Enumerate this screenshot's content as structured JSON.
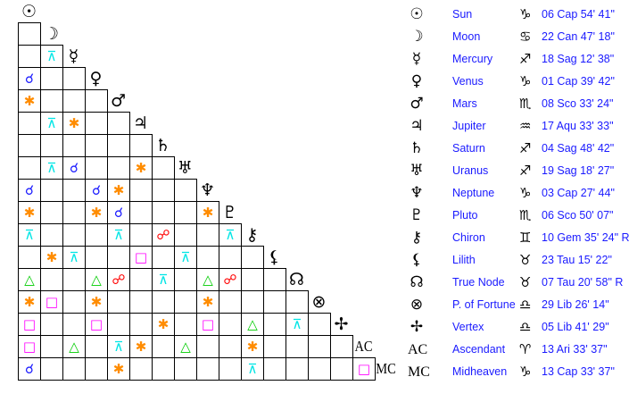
{
  "bodies": [
    {
      "glyph": "☉",
      "name": "Sun",
      "sign": "♑",
      "position": "06 Cap 54' 41\""
    },
    {
      "glyph": "☽",
      "name": "Moon",
      "sign": "♋",
      "position": "22 Can 47' 18\""
    },
    {
      "glyph": "☿",
      "name": "Mercury",
      "sign": "♐",
      "position": "18 Sag 12' 38\""
    },
    {
      "glyph": "♀",
      "name": "Venus",
      "sign": "♑",
      "position": "01 Cap 39' 42\""
    },
    {
      "glyph": "♂",
      "name": "Mars",
      "sign": "♏",
      "position": "08 Sco 33' 24\""
    },
    {
      "glyph": "♃",
      "name": "Jupiter",
      "sign": "♒",
      "position": "17 Aqu 33' 33\""
    },
    {
      "glyph": "♄",
      "name": "Saturn",
      "sign": "♐",
      "position": "04 Sag 48' 42\""
    },
    {
      "glyph": "♅",
      "name": "Uranus",
      "sign": "♐",
      "position": "19 Sag 18' 27\""
    },
    {
      "glyph": "♆",
      "name": "Neptune",
      "sign": "♑",
      "position": "03 Cap 27' 44\""
    },
    {
      "glyph": "♇",
      "name": "Pluto",
      "sign": "♏",
      "position": "06 Sco 50' 07\""
    },
    {
      "glyph": "⚷",
      "name": "Chiron",
      "sign": "♊",
      "position": "10 Gem 35' 24\" R"
    },
    {
      "glyph": "⚸",
      "name": "Lilith",
      "sign": "♉",
      "position": "23 Tau 15' 22\""
    },
    {
      "glyph": "☊",
      "name": "True Node",
      "sign": "♉",
      "position": "07 Tau 20' 58\" R"
    },
    {
      "glyph": "⊗",
      "name": "P. of Fortune",
      "sign": "♎",
      "position": "29 Lib 26' 14\""
    },
    {
      "glyph": "✢",
      "name": "Vertex",
      "sign": "♎",
      "position": "05 Lib 41' 29\""
    },
    {
      "glyph": "AC",
      "name": "Ascendant",
      "sign": "♈",
      "position": "13 Ari 33' 37\""
    },
    {
      "glyph": "MC",
      "name": "Midheaven",
      "sign": "♑",
      "position": "13 Cap 33' 37\""
    }
  ],
  "aspect_types": {
    "conjunction": {
      "glyph": "☌",
      "color": "#1a1aff"
    },
    "sextile": {
      "glyph": "✱",
      "color": "#ff8c00"
    },
    "quincunx": {
      "glyph": "⊼",
      "color": "#00e5e5"
    },
    "square": {
      "glyph": "□",
      "color": "#ff00ff"
    },
    "trine": {
      "glyph": "△",
      "color": "#00cc00"
    },
    "opposition": {
      "glyph": "☍",
      "color": "#ff0000"
    }
  },
  "aspects": [
    [
      "Mercury",
      "Moon",
      "quincunx"
    ],
    [
      "Venus",
      "Sun",
      "conjunction"
    ],
    [
      "Mars",
      "Sun",
      "sextile"
    ],
    [
      "Jupiter",
      "Moon",
      "quincunx"
    ],
    [
      "Jupiter",
      "Mercury",
      "sextile"
    ],
    [
      "Uranus",
      "Moon",
      "quincunx"
    ],
    [
      "Uranus",
      "Mercury",
      "conjunction"
    ],
    [
      "Uranus",
      "Jupiter",
      "sextile"
    ],
    [
      "Neptune",
      "Sun",
      "conjunction"
    ],
    [
      "Neptune",
      "Venus",
      "conjunction"
    ],
    [
      "Neptune",
      "Mars",
      "sextile"
    ],
    [
      "Pluto",
      "Sun",
      "sextile"
    ],
    [
      "Pluto",
      "Venus",
      "sextile"
    ],
    [
      "Pluto",
      "Mars",
      "conjunction"
    ],
    [
      "Pluto",
      "Neptune",
      "sextile"
    ],
    [
      "Chiron",
      "Sun",
      "quincunx"
    ],
    [
      "Chiron",
      "Mars",
      "quincunx"
    ],
    [
      "Chiron",
      "Saturn",
      "opposition"
    ],
    [
      "Chiron",
      "Pluto",
      "quincunx"
    ],
    [
      "Lilith",
      "Moon",
      "sextile"
    ],
    [
      "Lilith",
      "Mercury",
      "quincunx"
    ],
    [
      "Lilith",
      "Jupiter",
      "square"
    ],
    [
      "Lilith",
      "Uranus",
      "quincunx"
    ],
    [
      "True Node",
      "Sun",
      "trine"
    ],
    [
      "True Node",
      "Venus",
      "trine"
    ],
    [
      "True Node",
      "Mars",
      "opposition"
    ],
    [
      "True Node",
      "Saturn",
      "quincunx"
    ],
    [
      "True Node",
      "Neptune",
      "trine"
    ],
    [
      "True Node",
      "Pluto",
      "opposition"
    ],
    [
      "P. of Fortune",
      "Sun",
      "sextile"
    ],
    [
      "P. of Fortune",
      "Moon",
      "square"
    ],
    [
      "P. of Fortune",
      "Venus",
      "sextile"
    ],
    [
      "P. of Fortune",
      "Neptune",
      "sextile"
    ],
    [
      "Vertex",
      "Sun",
      "square"
    ],
    [
      "Vertex",
      "Venus",
      "square"
    ],
    [
      "Vertex",
      "Saturn",
      "sextile"
    ],
    [
      "Vertex",
      "Neptune",
      "square"
    ],
    [
      "Vertex",
      "Chiron",
      "trine"
    ],
    [
      "Vertex",
      "True Node",
      "quincunx"
    ],
    [
      "Ascendant",
      "Sun",
      "square"
    ],
    [
      "Ascendant",
      "Mercury",
      "trine"
    ],
    [
      "Ascendant",
      "Mars",
      "quincunx"
    ],
    [
      "Ascendant",
      "Jupiter",
      "sextile"
    ],
    [
      "Ascendant",
      "Uranus",
      "trine"
    ],
    [
      "Ascendant",
      "Chiron",
      "sextile"
    ],
    [
      "Midheaven",
      "Sun",
      "conjunction"
    ],
    [
      "Midheaven",
      "Mars",
      "sextile"
    ],
    [
      "Midheaven",
      "Chiron",
      "quincunx"
    ],
    [
      "Midheaven",
      "Ascendant",
      "square"
    ]
  ]
}
